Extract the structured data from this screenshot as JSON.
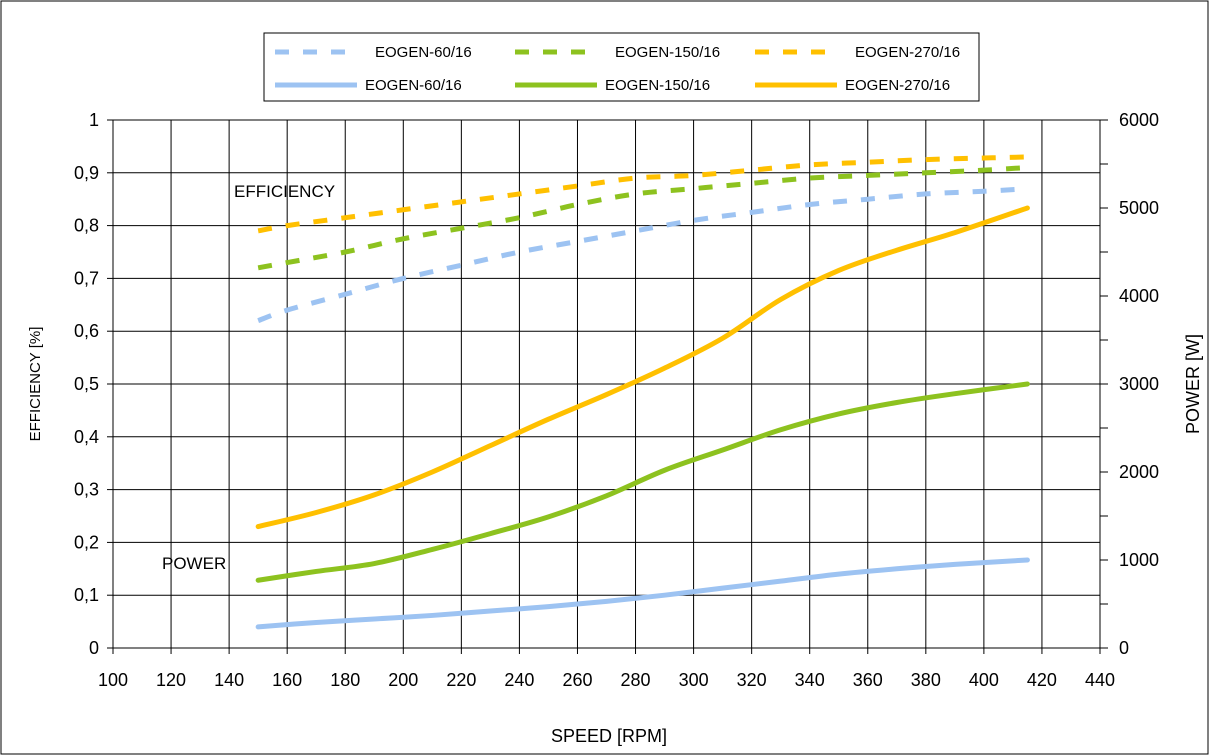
{
  "chart_data": {
    "type": "line",
    "title": "",
    "xlabel": "SPEED [RPM]",
    "ylabel_left": "EFFICIENCY [%]",
    "ylabel_right": "POWER [W]",
    "xlim": [
      100,
      440
    ],
    "ylim_left": [
      0,
      1
    ],
    "ylim_right": [
      0,
      6000
    ],
    "x_ticks": [
      "100",
      "120",
      "140",
      "160",
      "180",
      "200",
      "220",
      "240",
      "260",
      "280",
      "300",
      "320",
      "340",
      "360",
      "380",
      "400",
      "420",
      "440"
    ],
    "y_left_ticks": [
      "0",
      "0,1",
      "0,2",
      "0,3",
      "0,4",
      "0,5",
      "0,6",
      "0,7",
      "0,8",
      "0,9",
      "1"
    ],
    "y_right_ticks": [
      "0",
      "1000",
      "2000",
      "3000",
      "4000",
      "5000",
      "6000"
    ],
    "grid": true,
    "legend_position": "top",
    "annotations": [
      "EFFICIENCY",
      "POWER"
    ],
    "colors": {
      "60": "#9dc3f2",
      "150": "#8dc21f",
      "270": "#ffc000"
    },
    "series": [
      {
        "name": "EOGEN-60/16",
        "axis": "left",
        "style": "dashed",
        "color_key": "60",
        "x": [
          150,
          160,
          180,
          200,
          220,
          240,
          260,
          280,
          300,
          320,
          340,
          360,
          380,
          400,
          415
        ],
        "values": [
          0.62,
          0.64,
          0.67,
          0.7,
          0.725,
          0.75,
          0.77,
          0.79,
          0.81,
          0.825,
          0.84,
          0.85,
          0.86,
          0.865,
          0.87
        ]
      },
      {
        "name": "EOGEN-150/16",
        "axis": "left",
        "style": "dashed",
        "color_key": "150",
        "x": [
          150,
          160,
          180,
          200,
          220,
          240,
          260,
          280,
          300,
          320,
          340,
          360,
          380,
          400,
          415
        ],
        "values": [
          0.72,
          0.73,
          0.75,
          0.775,
          0.795,
          0.815,
          0.84,
          0.86,
          0.87,
          0.88,
          0.89,
          0.895,
          0.9,
          0.905,
          0.91
        ]
      },
      {
        "name": "EOGEN-270/16",
        "axis": "left",
        "style": "dashed",
        "color_key": "270",
        "x": [
          150,
          160,
          180,
          200,
          220,
          240,
          260,
          280,
          300,
          320,
          340,
          360,
          380,
          400,
          415
        ],
        "values": [
          0.79,
          0.8,
          0.815,
          0.83,
          0.845,
          0.86,
          0.875,
          0.89,
          0.895,
          0.905,
          0.915,
          0.92,
          0.925,
          0.928,
          0.93
        ]
      },
      {
        "name": "EOGEN-60/16",
        "axis": "right",
        "style": "solid",
        "color_key": "60",
        "x": [
          150,
          170,
          190,
          210,
          230,
          250,
          270,
          290,
          310,
          330,
          350,
          370,
          390,
          415
        ],
        "values": [
          240,
          290,
          330,
          370,
          420,
          470,
          530,
          600,
          680,
          760,
          840,
          900,
          950,
          1000
        ]
      },
      {
        "name": "EOGEN-150/16",
        "axis": "right",
        "style": "solid",
        "color_key": "150",
        "x": [
          150,
          170,
          190,
          210,
          230,
          250,
          270,
          290,
          310,
          330,
          350,
          370,
          390,
          415
        ],
        "values": [
          770,
          870,
          960,
          1120,
          1300,
          1490,
          1730,
          2020,
          2250,
          2480,
          2660,
          2790,
          2890,
          3000
        ]
      },
      {
        "name": "EOGEN-270/16",
        "axis": "right",
        "style": "solid",
        "color_key": "270",
        "x": [
          150,
          170,
          190,
          210,
          230,
          250,
          270,
          290,
          310,
          330,
          350,
          370,
          390,
          415
        ],
        "values": [
          1380,
          1540,
          1740,
          2000,
          2300,
          2600,
          2880,
          3180,
          3520,
          3960,
          4290,
          4520,
          4720,
          5000
        ]
      }
    ]
  }
}
